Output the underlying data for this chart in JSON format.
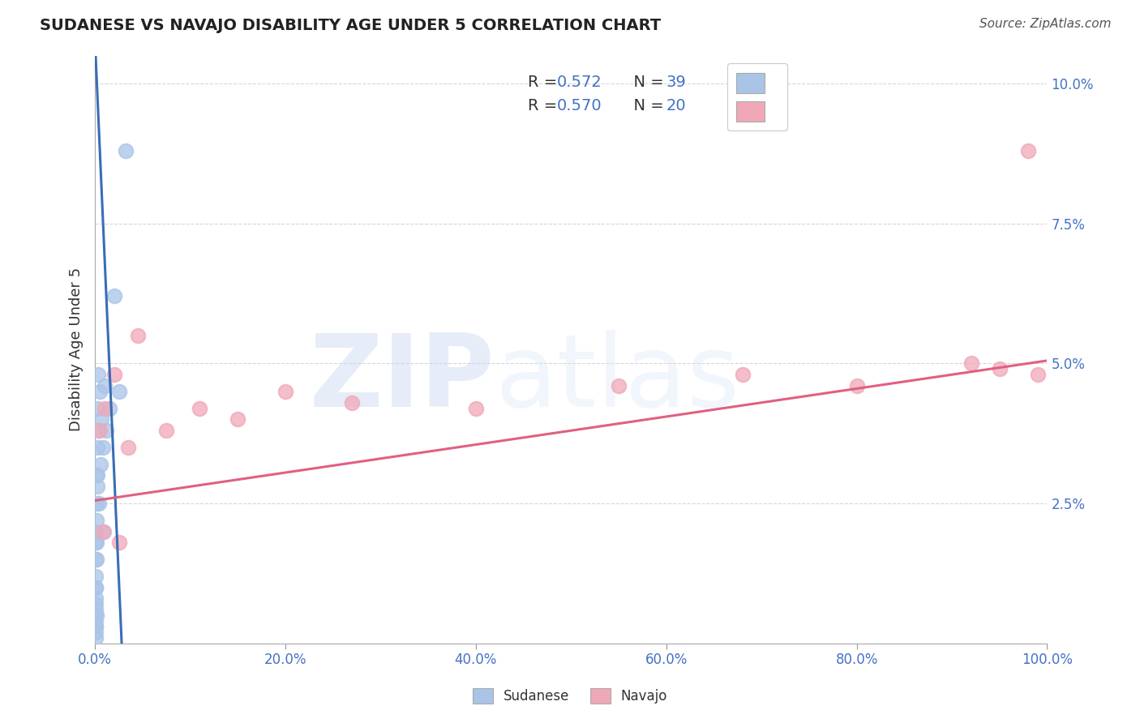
{
  "title": "SUDANESE VS NAVAJO DISABILITY AGE UNDER 5 CORRELATION CHART",
  "source": "Source: ZipAtlas.com",
  "ylabel": "Disability Age Under 5",
  "xlim": [
    0,
    100
  ],
  "ylim": [
    0,
    10.5
  ],
  "xticks": [
    0,
    20,
    40,
    60,
    80,
    100
  ],
  "xticklabels": [
    "0.0%",
    "20.0%",
    "40.0%",
    "60.0%",
    "80.0%",
    "100.0%"
  ],
  "yticks": [
    0,
    2.5,
    5.0,
    7.5,
    10.0
  ],
  "yticklabels": [
    "",
    "2.5%",
    "5.0%",
    "7.5%",
    "10.0%"
  ],
  "legend_r1": "R = 0.572",
  "legend_n1": "N = 39",
  "legend_r2": "R = 0.570",
  "legend_n2": "N = 20",
  "sudanese_color": "#aac4e8",
  "navajo_color": "#f0a8b8",
  "sudanese_line_color": "#3a6db5",
  "navajo_line_color": "#e06080",
  "watermark_zip": "ZIP",
  "watermark_atlas": "atlas",
  "sudanese_x": [
    0.06,
    0.06,
    0.06,
    0.06,
    0.06,
    0.07,
    0.07,
    0.07,
    0.08,
    0.08,
    0.09,
    0.09,
    0.1,
    0.1,
    0.11,
    0.12,
    0.13,
    0.14,
    0.15,
    0.16,
    0.18,
    0.2,
    0.22,
    0.25,
    0.28,
    0.3,
    0.35,
    0.4,
    0.5,
    0.6,
    0.7,
    0.8,
    0.9,
    1.0,
    1.2,
    1.5,
    2.0,
    2.5,
    3.2
  ],
  "sudanese_y": [
    0.1,
    0.2,
    0.3,
    0.5,
    0.7,
    0.8,
    1.0,
    1.2,
    0.4,
    1.5,
    0.6,
    1.8,
    0.3,
    2.0,
    1.0,
    2.5,
    0.5,
    3.0,
    1.5,
    2.2,
    1.8,
    3.5,
    2.8,
    4.2,
    3.0,
    4.8,
    3.8,
    2.5,
    4.5,
    3.2,
    4.0,
    3.5,
    2.0,
    4.6,
    3.8,
    4.2,
    6.2,
    4.5,
    8.8
  ],
  "navajo_x": [
    0.5,
    1.0,
    2.0,
    3.5,
    4.5,
    7.5,
    11.0,
    15.0,
    20.0,
    27.0,
    40.0,
    55.0,
    68.0,
    80.0,
    92.0,
    95.0,
    98.0,
    99.0,
    0.8,
    2.5
  ],
  "navajo_y": [
    3.8,
    4.2,
    4.8,
    3.5,
    5.5,
    3.8,
    4.2,
    4.0,
    4.5,
    4.3,
    4.2,
    4.6,
    4.8,
    4.6,
    5.0,
    4.9,
    8.8,
    4.8,
    2.0,
    1.8
  ],
  "blue_trend_x": [
    0.065,
    2.8
  ],
  "blue_trend_y": [
    10.5,
    0.0
  ],
  "pink_trend_x": [
    0.0,
    100.0
  ],
  "pink_trend_y": [
    2.55,
    5.05
  ],
  "background_color": "#ffffff",
  "grid_color": "#cccccc",
  "text_color_blue": "#4472c4",
  "text_color_dark": "#222222",
  "text_color_pink": "#e06080",
  "axis_label_color": "#333333"
}
